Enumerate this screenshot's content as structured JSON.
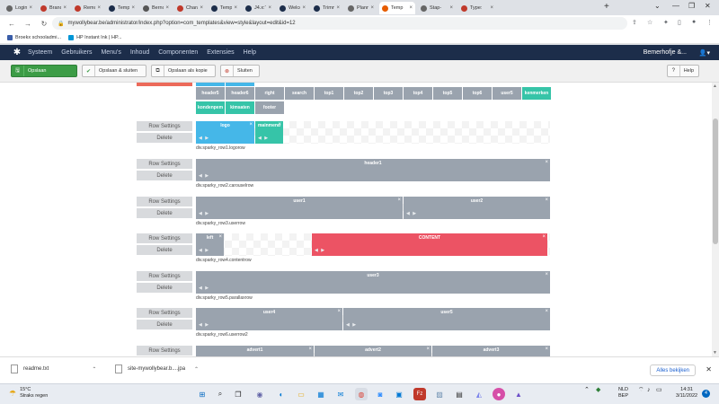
{
  "browser": {
    "tabs": [
      {
        "label": "Login",
        "color": "#666666"
      },
      {
        "label": "Brand",
        "color": "#c0392b"
      },
      {
        "label": "Remo",
        "color": "#c0392b"
      },
      {
        "label": "Temp",
        "color": "#1c2d4a"
      },
      {
        "label": "Berno",
        "color": "#555555"
      },
      {
        "label": "Chara",
        "color": "#c0392b"
      },
      {
        "label": "Temp",
        "color": "#1c2d4a"
      },
      {
        "label": "J4.x:T",
        "color": "#1c2d4a"
      },
      {
        "label": "Welco",
        "color": "#1c2d4a"
      },
      {
        "label": "Trimn",
        "color": "#1c2d4a"
      },
      {
        "label": "Plann",
        "color": "#666666"
      },
      {
        "label": "Temp",
        "color": "#e65c00"
      },
      {
        "label": "Stap-",
        "color": "#666666"
      },
      {
        "label": "Type:",
        "color": "#c0392b"
      }
    ],
    "url": "mywollybear.be/administrator/index.php?option=com_templates&view=style&layout=edit&id=12",
    "bookmarks": [
      "Broekx schooladmi...",
      "HP Instant Ink | HP..."
    ]
  },
  "joomla": {
    "menu": [
      "Systeem",
      "Gebruikers",
      "Menu's",
      "Inhoud",
      "Componenten",
      "Extensies",
      "Help"
    ],
    "site_name": "Bemerhofje &...",
    "toolbar": {
      "save": "Opslaan",
      "save_close": "Opslaan & sluiten",
      "save_copy": "Opslaan als kopie",
      "close": "Sluiten",
      "help": "Help"
    }
  },
  "positions_row1": [
    "header5",
    "header6",
    "right",
    "search",
    "top1",
    "top2",
    "top3",
    "top4",
    "top5",
    "top6",
    "user5",
    "kenmerken"
  ],
  "positions_row2": [
    "kondenpem",
    "kimsaten",
    "footer"
  ],
  "layout_rows": [
    {
      "label": "div.sparky_row1.logorow",
      "blocks": [
        {
          "name": "logo",
          "color": "#45b7e8"
        },
        {
          "name": "mainmenu",
          "color": "#36c4a8"
        }
      ]
    },
    {
      "label": "div.sparky_row2.carouselrow",
      "blocks": [
        {
          "name": "header1",
          "color": "#9aa3ae"
        }
      ]
    },
    {
      "label": "div.sparky_row3.userrow",
      "blocks": [
        {
          "name": "user1",
          "color": "#9aa3ae"
        },
        {
          "name": "user2",
          "color": "#9aa3ae"
        }
      ]
    },
    {
      "label": "div.sparky_row4.contentrow",
      "blocks": [
        {
          "name": "left",
          "color": "#9aa3ae"
        },
        {
          "name": "CONTENT",
          "color": "#ec5364"
        }
      ]
    },
    {
      "label": "div.sparky_row5.parallaxrow",
      "blocks": [
        {
          "name": "user3",
          "color": "#9aa3ae"
        }
      ]
    },
    {
      "label": "div.sparky_row6.userrow2",
      "blocks": [
        {
          "name": "user4",
          "color": "#9aa3ae"
        },
        {
          "name": "user5",
          "color": "#9aa3ae"
        }
      ]
    },
    {
      "label": "",
      "blocks": [
        {
          "name": "advert1",
          "color": "#9aa3ae"
        },
        {
          "name": "advert2",
          "color": "#9aa3ae"
        },
        {
          "name": "advert3",
          "color": "#9aa3ae"
        }
      ]
    }
  ],
  "row_buttons": {
    "settings": "Row Settings",
    "delete": "Delete"
  },
  "downloads": {
    "items": [
      "readme.txt",
      "site-mywollybear.b....jpa"
    ],
    "show_all": "Alles bekijken"
  },
  "taskbar": {
    "temp": "15°C",
    "weather": "Straks regen",
    "lang": "NLD",
    "lang2": "BEP",
    "time": "14:31",
    "date": "3/11/2022",
    "badge": "4"
  }
}
